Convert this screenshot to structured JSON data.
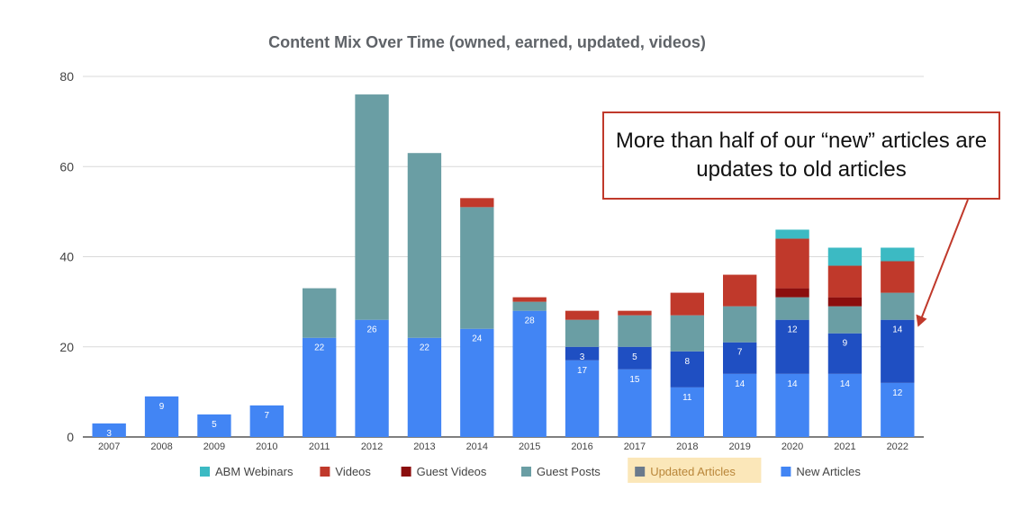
{
  "chart_data": {
    "type": "bar",
    "stacked": true,
    "title": "Content Mix Over Time (owned, earned, updated, videos)",
    "ylim": [
      0,
      80
    ],
    "yticks": [
      0,
      20,
      40,
      60,
      80
    ],
    "grid": true,
    "legend_position": "bottom",
    "categories": [
      "2007",
      "2008",
      "2009",
      "2010",
      "2011",
      "2012",
      "2013",
      "2014",
      "2015",
      "2016",
      "2017",
      "2018",
      "2019",
      "2020",
      "2021",
      "2022"
    ],
    "series": [
      {
        "name": "New Articles",
        "color": "#4285f4",
        "values": [
          3,
          9,
          5,
          7,
          22,
          26,
          22,
          24,
          28,
          17,
          15,
          11,
          14,
          14,
          14,
          12
        ],
        "labels": [
          "3",
          "9",
          "5",
          "7",
          "22",
          "26",
          "22",
          "24",
          "28",
          "17",
          "15",
          "11",
          "14",
          "14",
          "14",
          "12"
        ]
      },
      {
        "name": "Updated Articles",
        "color": "#1f4fc2",
        "values": [
          0,
          0,
          0,
          0,
          0,
          0,
          0,
          0,
          0,
          3,
          5,
          8,
          7,
          12,
          9,
          14
        ],
        "labels": [
          "",
          "",
          "",
          "",
          "",
          "",
          "",
          "",
          "",
          "3",
          "5",
          "8",
          "7",
          "12",
          "9",
          "14"
        ]
      },
      {
        "name": "Guest Posts",
        "color": "#6a9ea4",
        "values": [
          0,
          0,
          0,
          0,
          11,
          50,
          41,
          27,
          2,
          6,
          7,
          8,
          8,
          5,
          6,
          6
        ]
      },
      {
        "name": "Guest Videos",
        "color": "#8b0e0e",
        "values": [
          0,
          0,
          0,
          0,
          0,
          0,
          0,
          0,
          0,
          0,
          0,
          0,
          0,
          2,
          2,
          0
        ]
      },
      {
        "name": "Videos",
        "color": "#c0392b",
        "values": [
          0,
          0,
          0,
          0,
          0,
          0,
          0,
          2,
          1,
          2,
          1,
          5,
          7,
          11,
          7,
          7
        ]
      },
      {
        "name": "ABM Webinars",
        "color": "#3cbac3",
        "values": [
          0,
          0,
          0,
          0,
          0,
          0,
          0,
          0,
          0,
          0,
          0,
          0,
          0,
          2,
          4,
          3
        ]
      }
    ],
    "legend_order": [
      "ABM Webinars",
      "Videos",
      "Guest Videos",
      "Guest Posts",
      "Updated Articles",
      "New Articles"
    ],
    "highlighted_legend": "Updated Articles",
    "annotation": {
      "text": "More than half of our “new” articles are updates to old articles",
      "border_color": "#c0392b",
      "points_to": "2022"
    }
  }
}
